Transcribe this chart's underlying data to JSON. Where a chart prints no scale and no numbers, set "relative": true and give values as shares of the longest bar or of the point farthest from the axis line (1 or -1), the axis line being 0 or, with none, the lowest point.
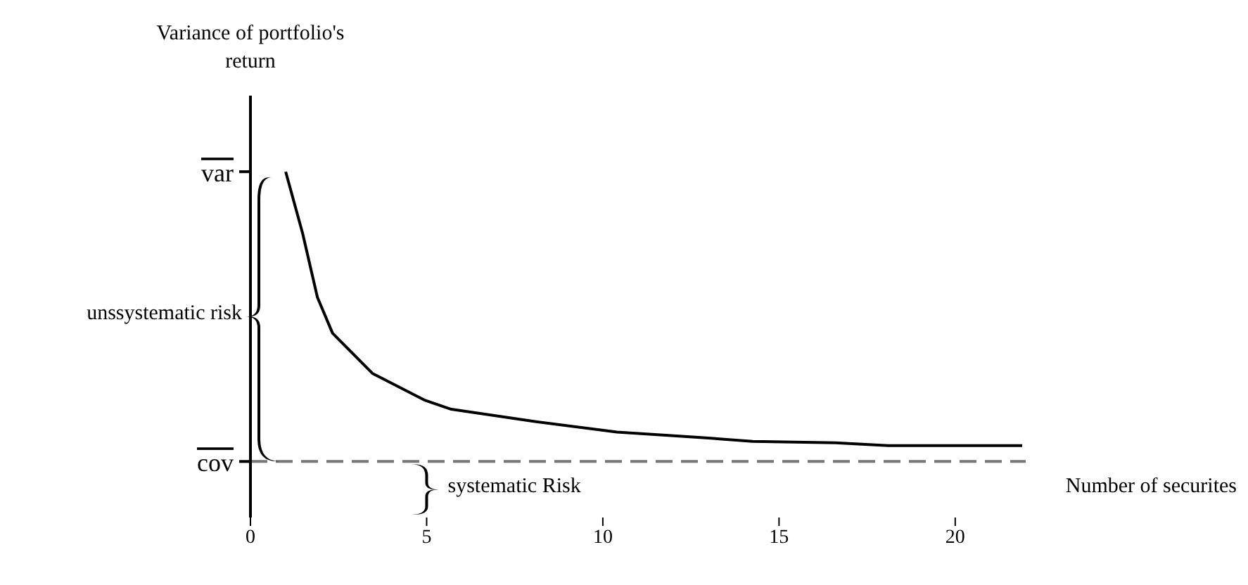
{
  "chart_data": {
    "type": "line",
    "xlabel": "Number of securites",
    "ylabel": "Variance of portfolio's return",
    "x": [
      1,
      1.48,
      1.9,
      2.33,
      3.46,
      4.93,
      5.7,
      8.04,
      10.4,
      12.7,
      14.25,
      16.6,
      18.1,
      21.9
    ],
    "series": [
      {
        "color": "#000000",
        "values": [
          1,
          0.822,
          0.637,
          0.533,
          0.417,
          0.34,
          0.313,
          0.278,
          0.247,
          0.232,
          0.22,
          0.216,
          0.208,
          0.208
        ]
      }
    ],
    "xlim": [
      0,
      22
    ],
    "xticks": [
      0,
      5,
      10,
      15,
      20
    ],
    "relative": true,
    "ref_lines": [
      {
        "axis": "y",
        "value": 1,
        "label": "var"
      },
      {
        "axis": "y",
        "value": 0.162,
        "label": "cov",
        "color": "#777777",
        "line_style": "dashed"
      }
    ],
    "annotations": [
      "unssystematic risk",
      "systematic Risk"
    ],
    "grid": false,
    "legend": false,
    "marker": "none",
    "line_style": "solid"
  }
}
